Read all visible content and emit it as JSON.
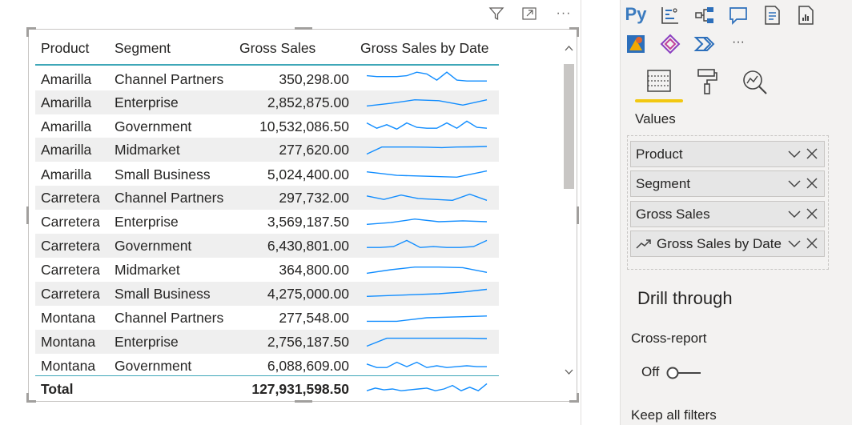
{
  "visual_header": {
    "icons": [
      "filter-icon",
      "focus-mode-icon",
      "more-options-icon"
    ],
    "more_label": "···"
  },
  "table": {
    "columns": [
      "Product",
      "Segment",
      "Gross Sales",
      "Gross Sales by Date"
    ],
    "rows": [
      {
        "product": "Amarilla",
        "segment": "Channel Partners",
        "gross_sales": "350,298.00",
        "spark": [
          0.3,
          0.35,
          0.35,
          0.35,
          0.3,
          0.1,
          0.2,
          0.55,
          0.1,
          0.55,
          0.6,
          0.6,
          0.6
        ]
      },
      {
        "product": "Amarilla",
        "segment": "Enterprise",
        "gross_sales": "2,852,875.00",
        "spark": [
          0.7,
          0.55,
          0.35,
          0.4,
          0.65,
          0.35
        ]
      },
      {
        "product": "Amarilla",
        "segment": "Government",
        "gross_sales": "10,532,086.50",
        "spark": [
          0.3,
          0.6,
          0.4,
          0.65,
          0.3,
          0.55,
          0.6,
          0.6,
          0.3,
          0.6,
          0.2,
          0.55,
          0.6
        ]
      },
      {
        "product": "Amarilla",
        "segment": "Midmarket",
        "gross_sales": "277,620.00",
        "spark": [
          0.75,
          0.35,
          0.35,
          0.35,
          0.36,
          0.38,
          0.35,
          0.34,
          0.32
        ]
      },
      {
        "product": "Amarilla",
        "segment": "Small Business",
        "gross_sales": "5,024,400.00",
        "spark": [
          0.35,
          0.55,
          0.6,
          0.65,
          0.3
        ]
      },
      {
        "product": "Carretera",
        "segment": "Channel Partners",
        "gross_sales": "297,732.00",
        "spark": [
          0.4,
          0.6,
          0.35,
          0.55,
          0.6,
          0.65,
          0.3,
          0.65
        ]
      },
      {
        "product": "Carretera",
        "segment": "Enterprise",
        "gross_sales": "3,569,187.50",
        "spark": [
          0.65,
          0.55,
          0.35,
          0.5,
          0.45,
          0.5
        ]
      },
      {
        "product": "Carretera",
        "segment": "Government",
        "gross_sales": "6,430,801.00",
        "spark": [
          0.6,
          0.6,
          0.55,
          0.2,
          0.6,
          0.55,
          0.6,
          0.6,
          0.55,
          0.2
        ]
      },
      {
        "product": "Carretera",
        "segment": "Midmarket",
        "gross_sales": "364,800.00",
        "spark": [
          0.7,
          0.5,
          0.35,
          0.35,
          0.38,
          0.65
        ]
      },
      {
        "product": "Carretera",
        "segment": "Small Business",
        "gross_sales": "4,275,000.00",
        "spark": [
          0.65,
          0.6,
          0.55,
          0.5,
          0.4,
          0.25
        ]
      },
      {
        "product": "Montana",
        "segment": "Channel Partners",
        "gross_sales": "277,548.00",
        "spark": [
          0.7,
          0.7,
          0.5,
          0.45,
          0.4
        ]
      },
      {
        "product": "Montana",
        "segment": "Enterprise",
        "gross_sales": "2,756,187.50",
        "spark": [
          0.75,
          0.3,
          0.3,
          0.3,
          0.3,
          0.3,
          0.32
        ]
      },
      {
        "product": "Montana",
        "segment": "Government",
        "gross_sales": "6,088,609.00",
        "spark": [
          0.4,
          0.6,
          0.6,
          0.3,
          0.55,
          0.3,
          0.6,
          0.5,
          0.6,
          0.55,
          0.5,
          0.55,
          0.55
        ]
      }
    ],
    "total": {
      "label": "Total",
      "gross_sales": "127,931,598.50",
      "spark": [
        0.6,
        0.45,
        0.55,
        0.5,
        0.6,
        0.55,
        0.5,
        0.45,
        0.6,
        0.5,
        0.3,
        0.6,
        0.4,
        0.6,
        0.2
      ]
    }
  },
  "pane": {
    "top_icons": [
      "python-visual-icon",
      "key-influencers-icon",
      "decomposition-tree-icon",
      "qa-icon",
      "paginated-report-icon",
      "smart-narrative-icon",
      "power-apps-icon",
      "power-automate-icon",
      "visual-icon-ellipsis"
    ],
    "py_label": "Py",
    "more_label": "···",
    "tabs": [
      "fields-tab-icon",
      "format-tab-icon",
      "analytics-tab-icon"
    ],
    "values_label": "Values",
    "fields": [
      "Product",
      "Segment",
      "Gross Sales",
      "Gross Sales by Date"
    ],
    "drill_through": "Drill through",
    "cross_report": "Cross-report",
    "toggle_state": "Off",
    "keep_all_filters": "Keep all filters"
  },
  "colors": {
    "accent_teal": "#3fa7b8",
    "sparkline": "#118dff",
    "tab_underline": "#f2c811",
    "row_alt": "#efefef"
  }
}
